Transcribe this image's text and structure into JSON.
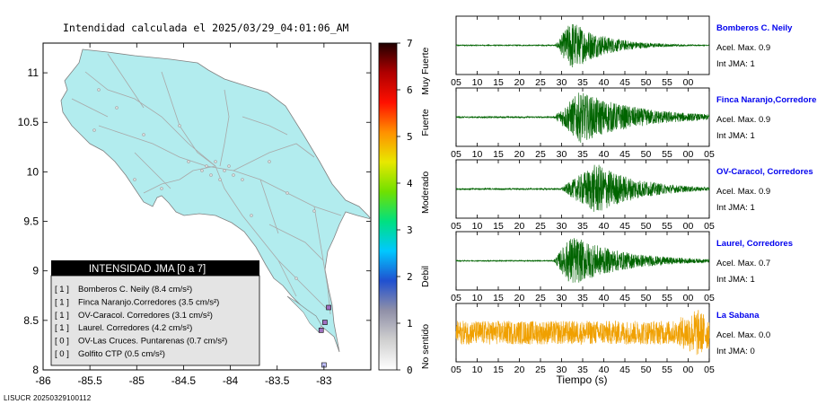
{
  "map": {
    "title": "Intendidad calculada el 2025/03/29_04:01:06_AM",
    "footer_code": "LISUCR 20250329100112",
    "x_ticks": [
      "-86",
      "-85.5",
      "-85",
      "-84.5",
      "-84",
      "-83.5",
      "-83"
    ],
    "y_ticks": [
      "8",
      "8.5",
      "9",
      "9.5",
      "10",
      "10.5",
      "11"
    ],
    "xlim": [
      -86,
      -82.5
    ],
    "ylim": [
      8,
      11.3
    ],
    "land_color": "#b2ecee",
    "road_color": "#a8a8a8",
    "legend": {
      "title": "INTENSIDAD JMA [0 a 7]",
      "items": [
        {
          "bracket": "[ 1 ]",
          "text": "Bomberos C. Neily (8.4 cm/s²)"
        },
        {
          "bracket": "[ 1 ]",
          "text": "Finca Naranjo.Corredores (3.5 cm/s²)"
        },
        {
          "bracket": "[ 1 ]",
          "text": "OV-Caracol. Corredores (3.1 cm/s²)"
        },
        {
          "bracket": "[ 1 ]",
          "text": "Laurel. Corredores (4.2 cm/s²)"
        },
        {
          "bracket": "[ 0 ]",
          "text": "OV-Las Cruces. Puntarenas (0.7 cm/s²)"
        },
        {
          "bracket": "[ 0 ]",
          "text": "Golfito CTP (0.5 cm/s²)"
        }
      ]
    },
    "stations": [
      {
        "lon": -82.95,
        "lat": 8.63,
        "color": "#a070c0"
      },
      {
        "lon": -83.03,
        "lat": 8.4,
        "color": "#a070c0"
      },
      {
        "lon": -82.99,
        "lat": 8.48,
        "color": "#a070c0"
      },
      {
        "lon": -83.0,
        "lat": 8.05,
        "color": "#c0c0ff"
      }
    ]
  },
  "colorbar": {
    "ticks": [
      "0",
      "1",
      "2",
      "3",
      "4",
      "5",
      "6",
      "7"
    ],
    "labels": [
      "No sentido",
      "Debil",
      "Moderado",
      "Fuerte",
      "Muy Fuerte"
    ],
    "range": [
      0,
      7
    ],
    "colors": [
      "#ffffff",
      "#d0d0d0",
      "#9090a8",
      "#2050d0",
      "#00c8ff",
      "#00e080",
      "#70e000",
      "#e8e800",
      "#ff9000",
      "#ff1000",
      "#b00000",
      "#200000"
    ]
  },
  "chart_data": {
    "type": "line",
    "xlabel": "Tiempo (s)",
    "x_tick_labels": [
      "05",
      "10",
      "15",
      "20",
      "25",
      "30",
      "35",
      "40",
      "45",
      "50",
      "55",
      "00",
      "05"
    ],
    "x_tick_labels_first": [
      "05",
      "10",
      "15",
      "20",
      "25",
      "30",
      "35",
      "40",
      "45",
      "50",
      "55",
      "00"
    ],
    "xlim": [
      5,
      65
    ],
    "series": [
      {
        "name": "Bomberos C. Neily",
        "accel": "Acel. Max. 0.9",
        "jma": "Int JMA: 1",
        "color": "#006400",
        "name_color": "#0000ee",
        "onset": 28.5,
        "peak_t": 32,
        "decay": 8,
        "amp": 1.0,
        "noise": 0.02
      },
      {
        "name": "Finca Naranjo,Corredores",
        "accel": "Acel. Max. 0.9",
        "jma": "Int JMA: 1",
        "color": "#006400",
        "name_color": "#0000ee",
        "onset": 28.0,
        "peak_t": 34,
        "decay": 14,
        "amp": 1.0,
        "noise": 0.03
      },
      {
        "name": "OV-Caracol, Corredores",
        "accel": "Acel. Max. 0.9",
        "jma": "Int JMA: 1",
        "color": "#006400",
        "name_color": "#0000ee",
        "onset": 29.5,
        "peak_t": 38,
        "decay": 10,
        "amp": 1.0,
        "noise": 0.03
      },
      {
        "name": "Laurel, Corredores",
        "accel": "Acel. Max. 0.7",
        "jma": "Int JMA: 1",
        "color": "#006400",
        "name_color": "#0000ee",
        "onset": 28.0,
        "peak_t": 32,
        "decay": 12,
        "amp": 1.0,
        "noise": 0.02
      },
      {
        "name": "La Sabana",
        "accel": "Acel. Max. 0.0",
        "jma": "Int JMA: 0",
        "color": "#f0a000",
        "name_color": "#0000ee",
        "onset": 5,
        "peak_t": 62,
        "decay": 3,
        "amp": 0.6,
        "noise": 0.45
      }
    ]
  }
}
